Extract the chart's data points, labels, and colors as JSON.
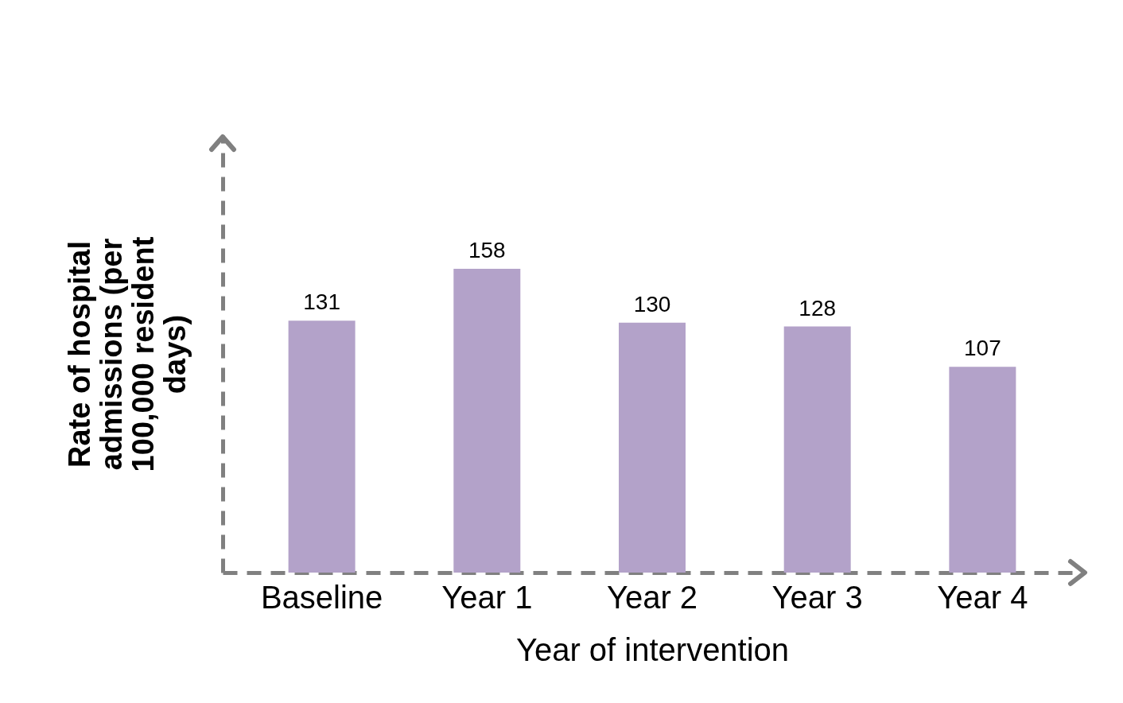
{
  "chart_data": {
    "type": "bar",
    "relative": false,
    "xlabel": "Year of intervention",
    "ylabel": "Rate of hospital admissions (per 100,000 resident days)",
    "categories": [
      "Baseline",
      "Year 1",
      "Year 2",
      "Year 3",
      "Year 4"
    ],
    "values": [
      131,
      158,
      130,
      128,
      107
    ],
    "color": "#b3a2c9",
    "data_labels": true
  }
}
